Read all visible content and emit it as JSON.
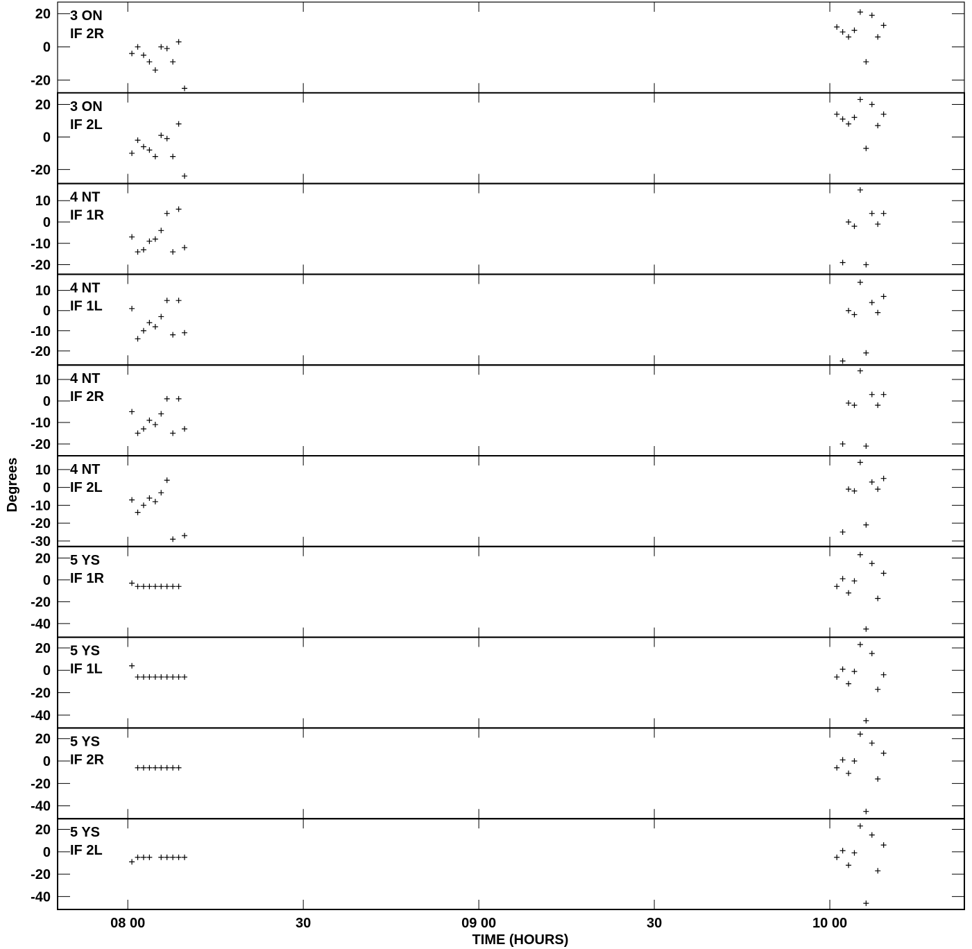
{
  "chart_data": {
    "type": "scatter",
    "ylabel": "Degrees",
    "xlabel": "TIME (HOURS)",
    "x_unit": "minutes after 07:48",
    "xlim": [
      0,
      155
    ],
    "x_ticks": [
      {
        "value": 12,
        "label": "08 00"
      },
      {
        "value": 42,
        "label": "30"
      },
      {
        "value": 72,
        "label": "09 00"
      },
      {
        "value": 102,
        "label": "30"
      },
      {
        "value": 132,
        "label": "10 00"
      }
    ],
    "panels": [
      {
        "label1": "3 ON",
        "label2": "IF 2R",
        "ylim": [
          -27.7,
          27
        ],
        "yticks": [
          20,
          0,
          -20
        ],
        "points": [
          [
            12.7,
            -4
          ],
          [
            13.7,
            0
          ],
          [
            14.7,
            -5
          ],
          [
            15.7,
            -9
          ],
          [
            16.7,
            -14
          ],
          [
            17.7,
            0
          ],
          [
            18.7,
            -1
          ],
          [
            19.7,
            -9
          ],
          [
            20.7,
            3
          ],
          [
            21.7,
            -25
          ],
          [
            133.2,
            12
          ],
          [
            134.2,
            9
          ],
          [
            135.2,
            6
          ],
          [
            136.2,
            10
          ],
          [
            137.2,
            21
          ],
          [
            138.2,
            -9
          ],
          [
            139.2,
            19
          ],
          [
            140.2,
            6
          ],
          [
            141.2,
            13
          ]
        ]
      },
      {
        "label1": "3 ON",
        "label2": "IF 2L",
        "ylim": [
          -28.6,
          27.1
        ],
        "yticks": [
          20,
          0,
          -20
        ],
        "points": [
          [
            12.7,
            -10
          ],
          [
            13.7,
            -2
          ],
          [
            14.7,
            -6
          ],
          [
            15.7,
            -8
          ],
          [
            16.7,
            -12
          ],
          [
            17.7,
            1
          ],
          [
            18.7,
            -1
          ],
          [
            19.7,
            -12
          ],
          [
            20.7,
            8
          ],
          [
            21.7,
            -24
          ],
          [
            133.2,
            14
          ],
          [
            134.2,
            11
          ],
          [
            135.2,
            8
          ],
          [
            136.2,
            12
          ],
          [
            137.2,
            23
          ],
          [
            138.2,
            -7
          ],
          [
            139.2,
            20
          ],
          [
            140.2,
            7
          ],
          [
            141.2,
            14
          ]
        ]
      },
      {
        "label1": "4 NT",
        "label2": "IF 1R",
        "ylim": [
          -24.5,
          18
        ],
        "yticks": [
          10,
          0,
          -10,
          -20
        ],
        "points": [
          [
            12.7,
            -7
          ],
          [
            13.7,
            -14
          ],
          [
            14.7,
            -13
          ],
          [
            15.7,
            -9
          ],
          [
            16.7,
            -8
          ],
          [
            17.7,
            -4
          ],
          [
            18.7,
            4
          ],
          [
            19.7,
            -14
          ],
          [
            20.7,
            6
          ],
          [
            21.7,
            -12
          ],
          [
            134.2,
            -19
          ],
          [
            135.2,
            0
          ],
          [
            136.2,
            -2
          ],
          [
            137.2,
            15
          ],
          [
            138.2,
            -20
          ],
          [
            139.2,
            4
          ],
          [
            140.2,
            -1
          ],
          [
            141.2,
            4
          ]
        ]
      },
      {
        "label1": "4 NT",
        "label2": "IF 1L",
        "ylim": [
          -27,
          18
        ],
        "yticks": [
          10,
          0,
          -10,
          -20
        ],
        "points": [
          [
            12.7,
            1
          ],
          [
            13.7,
            -14
          ],
          [
            14.7,
            -10
          ],
          [
            15.7,
            -6
          ],
          [
            16.7,
            -8
          ],
          [
            17.7,
            -3
          ],
          [
            18.7,
            5
          ],
          [
            19.7,
            -12
          ],
          [
            20.7,
            5
          ],
          [
            21.7,
            -11
          ],
          [
            134.2,
            -25
          ],
          [
            135.2,
            0
          ],
          [
            136.2,
            -2
          ],
          [
            137.2,
            14
          ],
          [
            138.2,
            -21
          ],
          [
            139.2,
            4
          ],
          [
            140.2,
            -1
          ],
          [
            141.2,
            7
          ]
        ]
      },
      {
        "label1": "4 NT",
        "label2": "IF 2R",
        "ylim": [
          -25.5,
          16.7
        ],
        "yticks": [
          10,
          0,
          -10,
          -20
        ],
        "points": [
          [
            12.7,
            -5
          ],
          [
            13.7,
            -15
          ],
          [
            14.7,
            -13
          ],
          [
            15.7,
            -9
          ],
          [
            16.7,
            -11
          ],
          [
            17.7,
            -6
          ],
          [
            18.7,
            1
          ],
          [
            19.7,
            -15
          ],
          [
            20.7,
            1
          ],
          [
            21.7,
            -13
          ],
          [
            134.2,
            -20
          ],
          [
            135.2,
            -1
          ],
          [
            136.2,
            -2
          ],
          [
            137.2,
            14
          ],
          [
            138.2,
            -21
          ],
          [
            139.2,
            3
          ],
          [
            140.2,
            -2
          ],
          [
            141.2,
            3
          ]
        ]
      },
      {
        "label1": "4 NT",
        "label2": "IF 2L",
        "ylim": [
          -33.1,
          17.7
        ],
        "yticks": [
          10,
          0,
          -10,
          -20,
          -30
        ],
        "points": [
          [
            12.7,
            -7
          ],
          [
            13.7,
            -14
          ],
          [
            14.7,
            -10
          ],
          [
            15.7,
            -6
          ],
          [
            16.7,
            -8
          ],
          [
            17.7,
            -3
          ],
          [
            18.7,
            4
          ],
          [
            19.7,
            -29
          ],
          [
            21.7,
            -27
          ],
          [
            134.2,
            -25
          ],
          [
            135.2,
            -1
          ],
          [
            136.2,
            -2
          ],
          [
            137.2,
            14
          ],
          [
            138.2,
            -21
          ],
          [
            139.2,
            3
          ],
          [
            140.2,
            -1
          ],
          [
            141.2,
            5
          ]
        ]
      },
      {
        "label1": "5 YS",
        "label2": "IF 1R",
        "ylim": [
          -52.5,
          30.5
        ],
        "yticks": [
          20,
          0,
          -20,
          -40
        ],
        "points": [
          [
            12.7,
            -3
          ],
          [
            13.7,
            -6
          ],
          [
            14.7,
            -6
          ],
          [
            15.7,
            -6
          ],
          [
            16.7,
            -6
          ],
          [
            17.7,
            -6
          ],
          [
            18.7,
            -6
          ],
          [
            19.7,
            -6
          ],
          [
            20.7,
            -6
          ],
          [
            133.2,
            -6
          ],
          [
            134.2,
            1
          ],
          [
            135.2,
            -12
          ],
          [
            136.2,
            -1
          ],
          [
            137.2,
            23
          ],
          [
            138.2,
            -45
          ],
          [
            139.2,
            15
          ],
          [
            140.2,
            -17
          ],
          [
            141.2,
            6
          ]
        ]
      },
      {
        "label1": "5 YS",
        "label2": "IF 1L",
        "ylim": [
          -51.5,
          29.5
        ],
        "yticks": [
          20,
          0,
          -20,
          -40
        ],
        "points": [
          [
            12.7,
            4
          ],
          [
            13.7,
            -6
          ],
          [
            14.7,
            -6
          ],
          [
            15.7,
            -6
          ],
          [
            16.7,
            -6
          ],
          [
            17.7,
            -6
          ],
          [
            18.7,
            -6
          ],
          [
            19.7,
            -6
          ],
          [
            20.7,
            -6
          ],
          [
            21.7,
            -6
          ],
          [
            133.2,
            -6
          ],
          [
            134.2,
            1
          ],
          [
            135.2,
            -12
          ],
          [
            136.2,
            -1
          ],
          [
            137.2,
            23
          ],
          [
            138.2,
            -45
          ],
          [
            139.2,
            15
          ],
          [
            140.2,
            -17
          ],
          [
            141.2,
            -4
          ]
        ]
      },
      {
        "label1": "5 YS",
        "label2": "IF 2R",
        "ylim": [
          -51.5,
          29.5
        ],
        "yticks": [
          20,
          0,
          -20,
          -40
        ],
        "points": [
          [
            13.7,
            -6
          ],
          [
            14.7,
            -6
          ],
          [
            15.7,
            -6
          ],
          [
            16.7,
            -6
          ],
          [
            17.7,
            -6
          ],
          [
            18.7,
            -6
          ],
          [
            19.7,
            -6
          ],
          [
            20.7,
            -6
          ],
          [
            133.2,
            -6
          ],
          [
            134.2,
            1
          ],
          [
            135.2,
            -11
          ],
          [
            136.2,
            0
          ],
          [
            137.2,
            24
          ],
          [
            138.2,
            -45
          ],
          [
            139.2,
            16
          ],
          [
            140.2,
            -16
          ],
          [
            141.2,
            7
          ]
        ]
      },
      {
        "label1": "5 YS",
        "label2": "IF 2L",
        "ylim": [
          -51.5,
          29.5
        ],
        "yticks": [
          20,
          0,
          -20,
          -40
        ],
        "points": [
          [
            12.7,
            -9
          ],
          [
            13.7,
            -5
          ],
          [
            14.7,
            -5
          ],
          [
            15.7,
            -5
          ],
          [
            17.7,
            -5
          ],
          [
            18.7,
            -5
          ],
          [
            19.7,
            -5
          ],
          [
            20.7,
            -5
          ],
          [
            21.7,
            -5
          ],
          [
            133.2,
            -5
          ],
          [
            134.2,
            1
          ],
          [
            135.2,
            -12
          ],
          [
            136.2,
            -1
          ],
          [
            137.2,
            23
          ],
          [
            138.2,
            -46
          ],
          [
            139.2,
            15
          ],
          [
            140.2,
            -17
          ],
          [
            141.2,
            6
          ]
        ]
      }
    ]
  }
}
